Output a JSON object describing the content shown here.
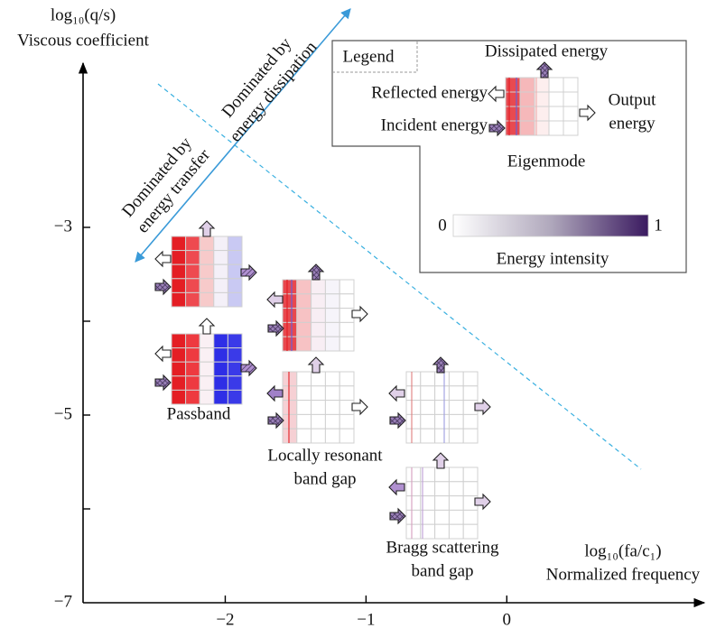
{
  "y_axis": {
    "label": "log₁₀(q/s)",
    "title": "Viscous coefficient",
    "lim": [
      -7,
      -1.25
    ],
    "ticks": [
      {
        "value": -3,
        "label": "−3"
      },
      {
        "value": -5,
        "label": "−5"
      },
      {
        "value": -7,
        "label": "−7"
      }
    ]
  },
  "x_axis": {
    "label": "log₁₀(fa/c₁)",
    "title": "Normalized frequency",
    "lim": [
      -3.01,
      1.39
    ],
    "ticks": [
      {
        "value": -2,
        "label": "−2"
      },
      {
        "value": -1,
        "label": "−1"
      },
      0
    ]
  },
  "annotations": {
    "dissipation": [
      "Dominated by",
      "energy dissipation"
    ],
    "transfer": [
      "Dominated by",
      "energy transfer"
    ]
  },
  "legend": {
    "title": "Legend",
    "dissipated": "Dissipated energy",
    "reflected": "Reflected energy",
    "incident": "Incident energy",
    "output": [
      "Output",
      "energy"
    ],
    "eigenmode": "Eigenmode",
    "colorbar": {
      "min": 0,
      "max": 1,
      "label": "Energy intensity"
    }
  },
  "regions": [
    {
      "label": [
        "Passband"
      ]
    },
    {
      "label": [
        "Locally resonant",
        "band gap"
      ]
    },
    {
      "label": [
        "Bragg scattering",
        "band gap"
      ]
    }
  ]
}
